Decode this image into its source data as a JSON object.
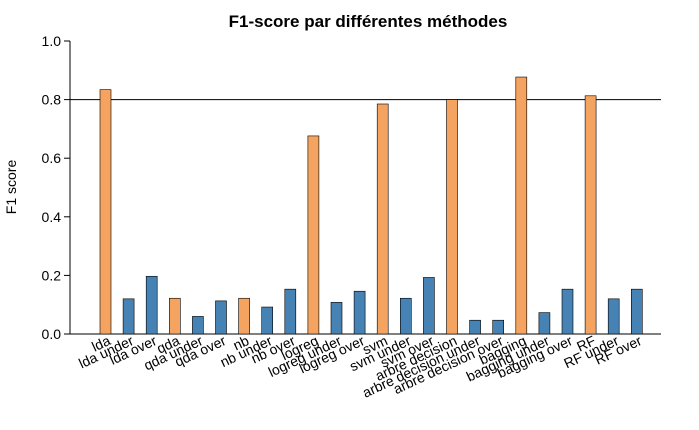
{
  "chart_data": {
    "type": "bar",
    "title": "F1-score par différentes méthodes",
    "xlabel": "",
    "ylabel": "F1 score",
    "ylim": [
      0,
      1.0
    ],
    "yticks": [
      "0.0",
      "0.2",
      "0.4",
      "0.6",
      "0.8",
      "1.0"
    ],
    "reference_line": 0.8,
    "categories": [
      "lda",
      "lda under",
      "lda over",
      "qda",
      "qda under",
      "qda over",
      "nb",
      "nb under",
      "nb over",
      "logreg",
      "logreg under",
      "logreg over",
      "svm",
      "svm under",
      "svm over",
      "arbre decision",
      "arbre decision under",
      "arbre decision over",
      "bagging",
      "bagging under",
      "bagging over",
      "RF",
      "RF under",
      "RF over"
    ],
    "values": [
      0.834,
      0.12,
      0.197,
      0.122,
      0.06,
      0.113,
      0.122,
      0.092,
      0.153,
      0.676,
      0.108,
      0.146,
      0.785,
      0.122,
      0.193,
      0.8,
      0.047,
      0.047,
      0.877,
      0.073,
      0.153,
      0.813,
      0.12,
      0.153
    ],
    "colors": {
      "base": "#F4A460",
      "resampled": "#4682B4",
      "bar_stroke": "#000000",
      "axis": "#000000",
      "reference_line": "#000000"
    }
  }
}
